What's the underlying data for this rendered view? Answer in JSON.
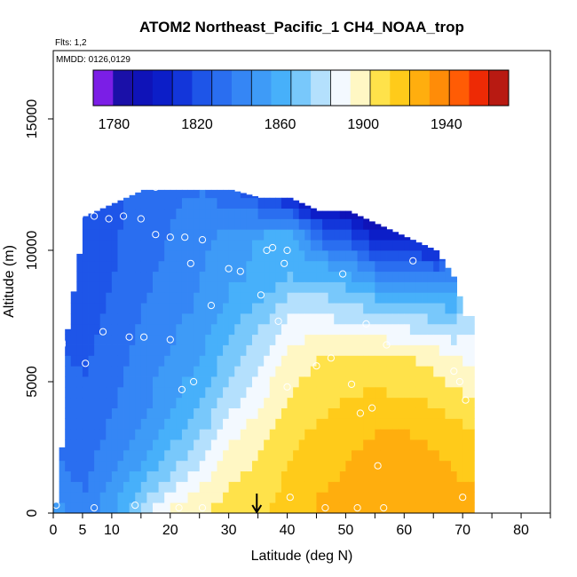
{
  "chart_data": {
    "type": "heatmap",
    "title": "ATOM2 Northeast_Pacific_1 CH4_NOAA_trop",
    "flights_label": "Flts: 1,2",
    "dates_label": "MMDD: 0126,0129",
    "xlabel": "Latitude (deg N)",
    "ylabel": "Altitude (m)",
    "xlim": [
      0,
      85
    ],
    "ylim": [
      0,
      17600
    ],
    "x_ticks": [
      0,
      5,
      10,
      20,
      30,
      40,
      50,
      60,
      70,
      80
    ],
    "y_ticks": [
      0,
      5000,
      10000,
      15000
    ],
    "colorbar": {
      "min": 1770,
      "max": 1970,
      "step": 10,
      "tick_values": [
        1780,
        1820,
        1860,
        1900,
        1940
      ],
      "colors": [
        "#7b1ee6",
        "#1a10a8",
        "#0f13b8",
        "#0c1ec8",
        "#1336da",
        "#1e55e8",
        "#2a6ef0",
        "#3586f5",
        "#3e9bf7",
        "#47b0fa",
        "#78c8fb",
        "#b4e0fd",
        "#f3f9ff",
        "#fff7c4",
        "#ffe24a",
        "#ffcb1a",
        "#ffae0e",
        "#ff8c08",
        "#ff5c05",
        "#ee2a05",
        "#b81a12"
      ]
    },
    "transect_marker_lat": 34.8,
    "grid": {
      "lat_step": 1,
      "alt_step": 400,
      "columns": [
        {
          "lat": 0,
          "alt_top": 400,
          "profile": [
            [
              0,
              1855
            ]
          ]
        },
        {
          "lat": 1,
          "alt_top": 2500,
          "profile": [
            [
              0,
              1852
            ],
            [
              2500,
              1838
            ]
          ]
        },
        {
          "lat": 2,
          "alt_top": 7000,
          "profile": [
            [
              0,
              1845
            ],
            [
              3000,
              1835
            ],
            [
              7000,
              1828
            ]
          ]
        },
        {
          "lat": 5,
          "alt_top": 11300,
          "profile": [
            [
              0,
              1842
            ],
            [
              4000,
              1832
            ],
            [
              8000,
              1826
            ],
            [
              11300,
              1822
            ]
          ]
        },
        {
          "lat": 10,
          "alt_top": 11800,
          "profile": [
            [
              0,
              1860
            ],
            [
              3000,
              1843
            ],
            [
              6000,
              1835
            ],
            [
              9000,
              1830
            ],
            [
              11800,
              1828
            ]
          ]
        },
        {
          "lat": 15,
          "alt_top": 12300,
          "profile": [
            [
              0,
              1885
            ],
            [
              2000,
              1860
            ],
            [
              4000,
              1848
            ],
            [
              7000,
              1842
            ],
            [
              10000,
              1836
            ],
            [
              12300,
              1834
            ]
          ]
        },
        {
          "lat": 20,
          "alt_top": 12300,
          "profile": [
            [
              0,
              1905
            ],
            [
              1500,
              1880
            ],
            [
              3500,
              1862
            ],
            [
              6000,
              1852
            ],
            [
              8000,
              1845
            ],
            [
              10000,
              1842
            ],
            [
              12300,
              1838
            ]
          ]
        },
        {
          "lat": 25,
          "alt_top": 12300,
          "profile": [
            [
              0,
              1910
            ],
            [
              1500,
              1895
            ],
            [
              3500,
              1875
            ],
            [
              6000,
              1860
            ],
            [
              8000,
              1852
            ],
            [
              10000,
              1848
            ],
            [
              12300,
              1840
            ]
          ]
        },
        {
          "lat": 30,
          "alt_top": 12300,
          "profile": [
            [
              0,
              1915
            ],
            [
              2000,
              1905
            ],
            [
              4500,
              1885
            ],
            [
              7000,
              1868
            ],
            [
              9000,
              1858
            ],
            [
              10500,
              1855
            ],
            [
              12300,
              1832
            ]
          ]
        },
        {
          "lat": 35,
          "alt_top": 12000,
          "profile": [
            [
              0,
              1918
            ],
            [
              2500,
              1910
            ],
            [
              5000,
              1895
            ],
            [
              7000,
              1880
            ],
            [
              9000,
              1862
            ],
            [
              10500,
              1862
            ],
            [
              12000,
              1825
            ]
          ]
        },
        {
          "lat": 40,
          "alt_top": 12000,
          "profile": [
            [
              0,
              1925
            ],
            [
              3000,
              1918
            ],
            [
              5500,
              1905
            ],
            [
              7500,
              1892
            ],
            [
              9000,
              1870
            ],
            [
              10500,
              1868
            ],
            [
              12000,
              1805
            ]
          ]
        },
        {
          "lat": 45,
          "alt_top": 11500,
          "profile": [
            [
              0,
              1932
            ],
            [
              3000,
              1922
            ],
            [
              6000,
              1910
            ],
            [
              8000,
              1885
            ],
            [
              9500,
              1860
            ],
            [
              11000,
              1820
            ],
            [
              11500,
              1800
            ]
          ]
        },
        {
          "lat": 50,
          "alt_top": 11500,
          "profile": [
            [
              0,
              1935
            ],
            [
              3000,
              1928
            ],
            [
              6000,
              1912
            ],
            [
              8000,
              1878
            ],
            [
              9500,
              1855
            ],
            [
              11000,
              1810
            ],
            [
              11500,
              1795
            ]
          ]
        },
        {
          "lat": 55,
          "alt_top": 11000,
          "profile": [
            [
              0,
              1938
            ],
            [
              3000,
              1930
            ],
            [
              6000,
              1912
            ],
            [
              8000,
              1875
            ],
            [
              9000,
              1848
            ],
            [
              10500,
              1805
            ],
            [
              11000,
              1790
            ]
          ]
        },
        {
          "lat": 60,
          "alt_top": 10500,
          "profile": [
            [
              0,
              1938
            ],
            [
              3000,
              1930
            ],
            [
              6000,
              1910
            ],
            [
              8000,
              1870
            ],
            [
              9000,
              1845
            ],
            [
              10500,
              1805
            ]
          ]
        },
        {
          "lat": 65,
          "alt_top": 10000,
          "profile": [
            [
              0,
              1938
            ],
            [
              3000,
              1928
            ],
            [
              6000,
              1905
            ],
            [
              8000,
              1868
            ],
            [
              9000,
              1842
            ],
            [
              10000,
              1810
            ]
          ]
        },
        {
          "lat": 68,
          "alt_top": 9000,
          "profile": [
            [
              0,
              1936
            ],
            [
              3000,
              1925
            ],
            [
              6000,
              1900
            ],
            [
              8000,
              1865
            ],
            [
              9000,
              1848
            ]
          ]
        },
        {
          "lat": 70,
          "alt_top": 7500,
          "profile": [
            [
              0,
              1935
            ],
            [
              3000,
              1922
            ],
            [
              5000,
              1905
            ],
            [
              7500,
              1885
            ]
          ]
        }
      ]
    },
    "samples": [
      {
        "lat": 0.5,
        "alt": 300
      },
      {
        "lat": 7,
        "alt": 200
      },
      {
        "lat": 14,
        "alt": 300
      },
      {
        "lat": 21.5,
        "alt": 200
      },
      {
        "lat": 25.5,
        "alt": 200
      },
      {
        "lat": 40.5,
        "alt": 600
      },
      {
        "lat": 46.5,
        "alt": 200
      },
      {
        "lat": 52,
        "alt": 200
      },
      {
        "lat": 56.5,
        "alt": 200
      },
      {
        "lat": 70,
        "alt": 600
      },
      {
        "lat": 55.5,
        "alt": 1800
      },
      {
        "lat": 52.5,
        "alt": 3800
      },
      {
        "lat": 54.5,
        "alt": 4000
      },
      {
        "lat": 70.5,
        "alt": 4300
      },
      {
        "lat": 22,
        "alt": 4700
      },
      {
        "lat": 24,
        "alt": 5000
      },
      {
        "lat": 40,
        "alt": 4800
      },
      {
        "lat": 51,
        "alt": 4900
      },
      {
        "lat": 69.5,
        "alt": 5000
      },
      {
        "lat": 68.5,
        "alt": 5400
      },
      {
        "lat": 45,
        "alt": 5600
      },
      {
        "lat": 47.5,
        "alt": 5900
      },
      {
        "lat": 5.5,
        "alt": 5700
      },
      {
        "lat": 1.5,
        "alt": 6400
      },
      {
        "lat": 1.5,
        "alt": 6500
      },
      {
        "lat": 8.5,
        "alt": 6900
      },
      {
        "lat": 13,
        "alt": 6700
      },
      {
        "lat": 15.5,
        "alt": 6700
      },
      {
        "lat": 20,
        "alt": 6600
      },
      {
        "lat": 38.5,
        "alt": 7300
      },
      {
        "lat": 53.5,
        "alt": 7200
      },
      {
        "lat": 57,
        "alt": 6400
      },
      {
        "lat": 27,
        "alt": 7900
      },
      {
        "lat": 35.5,
        "alt": 8300
      },
      {
        "lat": 49.5,
        "alt": 9100
      },
      {
        "lat": 30,
        "alt": 9300
      },
      {
        "lat": 32,
        "alt": 9200
      },
      {
        "lat": 23.5,
        "alt": 9500
      },
      {
        "lat": 39.5,
        "alt": 9500
      },
      {
        "lat": 61.5,
        "alt": 9600
      },
      {
        "lat": 36.5,
        "alt": 10000
      },
      {
        "lat": 37.5,
        "alt": 10100
      },
      {
        "lat": 40,
        "alt": 10000
      },
      {
        "lat": 17.5,
        "alt": 10600
      },
      {
        "lat": 20,
        "alt": 10500
      },
      {
        "lat": 22.5,
        "alt": 10500
      },
      {
        "lat": 25.5,
        "alt": 10400
      },
      {
        "lat": 4,
        "alt": 11300
      },
      {
        "lat": 4.5,
        "alt": 11300
      },
      {
        "lat": 7,
        "alt": 11300
      },
      {
        "lat": 9.5,
        "alt": 11200
      },
      {
        "lat": 12,
        "alt": 11300
      },
      {
        "lat": 15,
        "alt": 11200
      },
      {
        "lat": 11,
        "alt": 12100
      },
      {
        "lat": 17.5,
        "alt": 12400
      }
    ]
  }
}
